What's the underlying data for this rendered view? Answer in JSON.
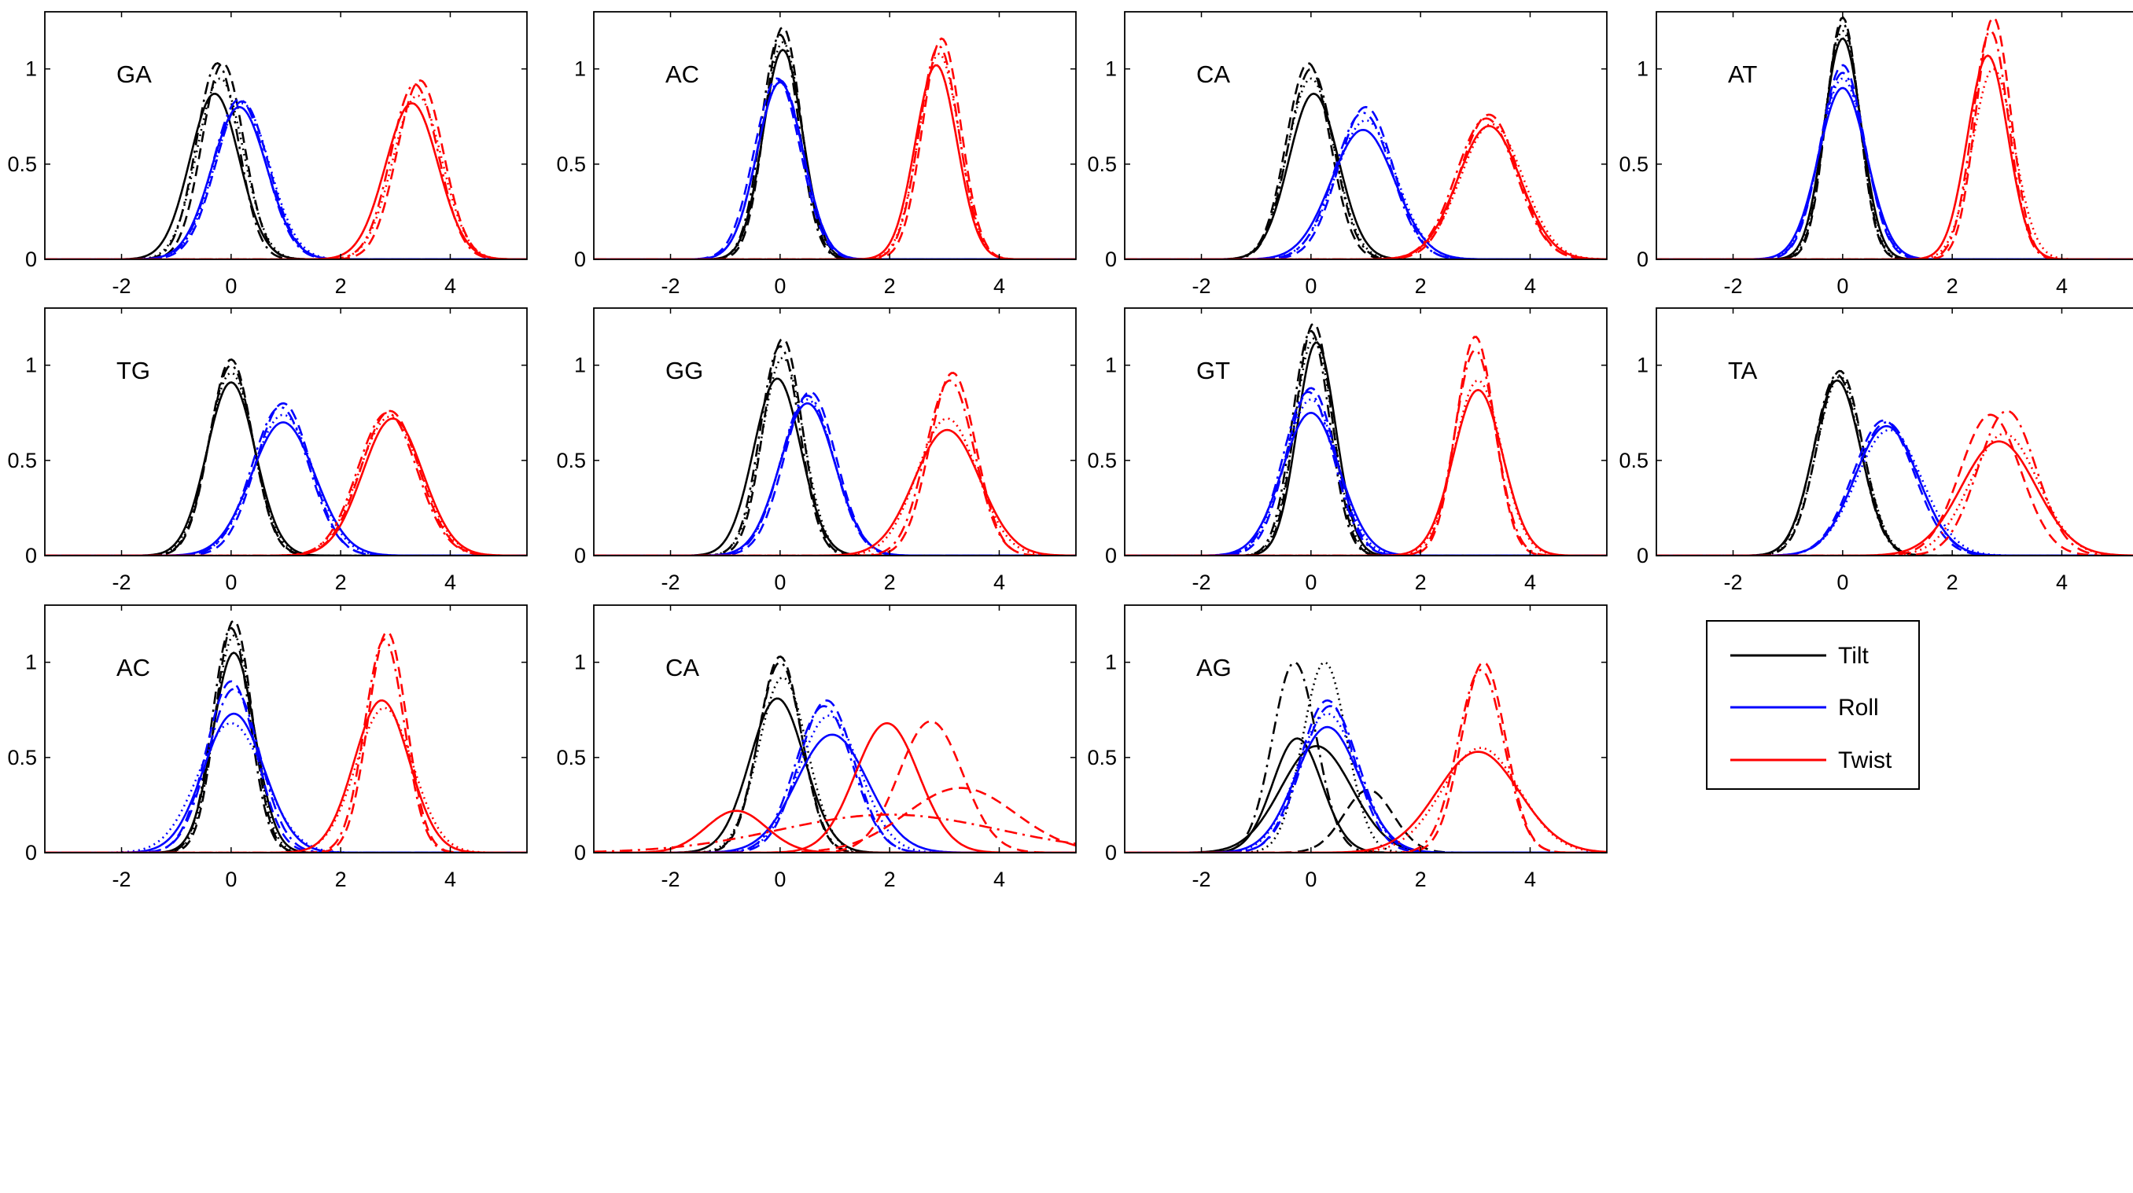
{
  "chart_data": {
    "type": "line",
    "grid": false,
    "xlim": [
      -3.4,
      5.4
    ],
    "ylim": [
      0,
      1.3
    ],
    "xticks": [
      -2,
      0,
      2,
      4
    ],
    "yticks": [
      0,
      0.5,
      1
    ],
    "ytick_labels": [
      "0",
      "0.5",
      "1"
    ],
    "series_colors": {
      "Tilt": "#000000",
      "Roll": "#0000ff",
      "Twist": "#ff0000"
    },
    "curve_styles": [
      "solid",
      "dashed",
      "dashdot",
      "dotted"
    ],
    "legend": {
      "placement": "bottom-right",
      "entries": [
        {
          "name": "Tilt",
          "color": "#000000"
        },
        {
          "name": "Roll",
          "color": "#0000ff"
        },
        {
          "name": "Twist",
          "color": "#ff0000"
        }
      ]
    },
    "panels": [
      {
        "label": "GA",
        "series": [
          {
            "name": "Tilt",
            "curves": [
              [
                -0.3,
                0.45,
                0.87
              ],
              [
                -0.15,
                0.38,
                1.03
              ],
              [
                -0.25,
                0.38,
                1.03
              ],
              [
                -0.2,
                0.42,
                0.95
              ]
            ]
          },
          {
            "name": "Roll",
            "curves": [
              [
                0.15,
                0.5,
                0.8
              ],
              [
                0.2,
                0.48,
                0.83
              ],
              [
                0.15,
                0.48,
                0.84
              ],
              [
                0.2,
                0.5,
                0.82
              ]
            ]
          },
          {
            "name": "Twist",
            "curves": [
              [
                3.3,
                0.48,
                0.82
              ],
              [
                3.45,
                0.42,
                0.94
              ],
              [
                3.35,
                0.43,
                0.92
              ],
              [
                3.4,
                0.45,
                0.86
              ]
            ]
          }
        ]
      },
      {
        "label": "AC",
        "series": [
          {
            "name": "Tilt",
            "curves": [
              [
                0.05,
                0.36,
                1.1
              ],
              [
                0.05,
                0.33,
                1.22
              ],
              [
                0.0,
                0.34,
                1.18
              ],
              [
                0.05,
                0.35,
                1.14
              ]
            ]
          },
          {
            "name": "Roll",
            "curves": [
              [
                0.0,
                0.42,
                0.93
              ],
              [
                -0.05,
                0.42,
                0.95
              ],
              [
                0.0,
                0.42,
                0.94
              ],
              [
                0.0,
                0.42,
                0.93
              ]
            ]
          },
          {
            "name": "Twist",
            "curves": [
              [
                2.85,
                0.38,
                1.02
              ],
              [
                2.95,
                0.35,
                1.16
              ],
              [
                2.9,
                0.36,
                1.12
              ],
              [
                2.9,
                0.37,
                1.08
              ]
            ]
          }
        ]
      },
      {
        "label": "CA",
        "series": [
          {
            "name": "Tilt",
            "curves": [
              [
                0.05,
                0.45,
                0.87
              ],
              [
                -0.05,
                0.4,
                1.03
              ],
              [
                0.0,
                0.41,
                1.0
              ],
              [
                0.0,
                0.43,
                0.95
              ]
            ]
          },
          {
            "name": "Roll",
            "curves": [
              [
                0.95,
                0.58,
                0.68
              ],
              [
                1.0,
                0.5,
                0.8
              ],
              [
                0.95,
                0.52,
                0.77
              ],
              [
                1.0,
                0.55,
                0.73
              ]
            ]
          },
          {
            "name": "Twist",
            "curves": [
              [
                3.25,
                0.57,
                0.7
              ],
              [
                3.25,
                0.53,
                0.76
              ],
              [
                3.2,
                0.55,
                0.74
              ],
              [
                3.3,
                0.57,
                0.71
              ]
            ]
          }
        ]
      },
      {
        "label": "AT",
        "series": [
          {
            "name": "Tilt",
            "curves": [
              [
                0.0,
                0.34,
                1.16
              ],
              [
                0.0,
                0.3,
                1.27
              ],
              [
                0.0,
                0.31,
                1.24
              ],
              [
                0.0,
                0.33,
                1.2
              ]
            ]
          },
          {
            "name": "Roll",
            "curves": [
              [
                0.0,
                0.44,
                0.9
              ],
              [
                0.0,
                0.4,
                1.02
              ],
              [
                0.0,
                0.41,
                0.98
              ],
              [
                0.0,
                0.42,
                0.95
              ]
            ]
          },
          {
            "name": "Twist",
            "curves": [
              [
                2.65,
                0.37,
                1.07
              ],
              [
                2.75,
                0.32,
                1.27
              ],
              [
                2.7,
                0.33,
                1.2
              ],
              [
                2.75,
                0.38,
                1.0
              ]
            ]
          }
        ]
      },
      {
        "label": "TG",
        "series": [
          {
            "name": "Tilt",
            "curves": [
              [
                0.0,
                0.44,
                0.91
              ],
              [
                0.0,
                0.39,
                1.03
              ],
              [
                0.0,
                0.4,
                1.0
              ],
              [
                0.0,
                0.42,
                0.96
              ]
            ]
          },
          {
            "name": "Roll",
            "curves": [
              [
                0.95,
                0.58,
                0.7
              ],
              [
                0.95,
                0.5,
                0.8
              ],
              [
                0.9,
                0.52,
                0.78
              ],
              [
                0.95,
                0.55,
                0.74
              ]
            ]
          },
          {
            "name": "Twist",
            "curves": [
              [
                2.95,
                0.55,
                0.72
              ],
              [
                2.9,
                0.53,
                0.76
              ],
              [
                2.85,
                0.54,
                0.75
              ],
              [
                2.9,
                0.56,
                0.73
              ]
            ]
          }
        ]
      },
      {
        "label": "GG",
        "series": [
          {
            "name": "Tilt",
            "curves": [
              [
                -0.05,
                0.43,
                0.93
              ],
              [
                0.05,
                0.35,
                1.14
              ],
              [
                0.0,
                0.36,
                1.1
              ],
              [
                0.05,
                0.38,
                1.04
              ]
            ]
          },
          {
            "name": "Roll",
            "curves": [
              [
                0.5,
                0.5,
                0.8
              ],
              [
                0.55,
                0.47,
                0.86
              ],
              [
                0.5,
                0.48,
                0.84
              ],
              [
                0.5,
                0.49,
                0.82
              ]
            ]
          },
          {
            "name": "Twist",
            "curves": [
              [
                3.05,
                0.6,
                0.66
              ],
              [
                3.15,
                0.42,
                0.96
              ],
              [
                3.1,
                0.44,
                0.92
              ],
              [
                3.05,
                0.55,
                0.72
              ]
            ]
          }
        ]
      },
      {
        "label": "GT",
        "series": [
          {
            "name": "Tilt",
            "curves": [
              [
                0.1,
                0.35,
                1.12
              ],
              [
                0.05,
                0.33,
                1.22
              ],
              [
                0.0,
                0.34,
                1.18
              ],
              [
                0.05,
                0.35,
                1.14
              ]
            ]
          },
          {
            "name": "Roll",
            "curves": [
              [
                0.0,
                0.52,
                0.75
              ],
              [
                0.0,
                0.45,
                0.88
              ],
              [
                -0.05,
                0.46,
                0.86
              ],
              [
                0.0,
                0.48,
                0.82
              ]
            ]
          },
          {
            "name": "Twist",
            "curves": [
              [
                3.05,
                0.45,
                0.87
              ],
              [
                3.0,
                0.35,
                1.15
              ],
              [
                3.0,
                0.37,
                1.08
              ],
              [
                3.05,
                0.43,
                0.92
              ]
            ]
          }
        ]
      },
      {
        "label": "TA",
        "series": [
          {
            "name": "Tilt",
            "curves": [
              [
                -0.1,
                0.43,
                0.92
              ],
              [
                -0.05,
                0.41,
                0.97
              ],
              [
                -0.1,
                0.42,
                0.95
              ],
              [
                -0.05,
                0.42,
                0.94
              ]
            ]
          },
          {
            "name": "Roll",
            "curves": [
              [
                0.8,
                0.58,
                0.68
              ],
              [
                0.75,
                0.56,
                0.71
              ],
              [
                0.8,
                0.57,
                0.7
              ],
              [
                0.85,
                0.6,
                0.66
              ]
            ]
          },
          {
            "name": "Twist",
            "curves": [
              [
                2.85,
                0.68,
                0.6
              ],
              [
                2.7,
                0.55,
                0.74
              ],
              [
                3.0,
                0.53,
                0.76
              ],
              [
                2.95,
                0.62,
                0.64
              ]
            ]
          }
        ]
      },
      {
        "label": "AC",
        "series": [
          {
            "name": "Tilt",
            "curves": [
              [
                0.05,
                0.38,
                1.05
              ],
              [
                0.05,
                0.33,
                1.22
              ],
              [
                0.0,
                0.34,
                1.18
              ],
              [
                0.05,
                0.35,
                1.14
              ]
            ]
          },
          {
            "name": "Roll",
            "curves": [
              [
                0.05,
                0.55,
                0.73
              ],
              [
                0.0,
                0.45,
                0.9
              ],
              [
                0.05,
                0.47,
                0.86
              ],
              [
                0.0,
                0.6,
                0.68
              ]
            ]
          },
          {
            "name": "Twist",
            "curves": [
              [
                2.75,
                0.5,
                0.8
              ],
              [
                2.85,
                0.35,
                1.16
              ],
              [
                2.8,
                0.36,
                1.12
              ],
              [
                2.8,
                0.52,
                0.76
              ]
            ]
          }
        ]
      },
      {
        "label": "CA",
        "series": [
          {
            "name": "Tilt",
            "curves": [
              [
                -0.05,
                0.5,
                0.81
              ],
              [
                0.0,
                0.39,
                1.03
              ],
              [
                0.0,
                0.4,
                1.0
              ],
              [
                0.05,
                0.44,
                0.92
              ]
            ]
          },
          {
            "name": "Roll",
            "curves": [
              [
                0.95,
                0.65,
                0.62
              ],
              [
                0.85,
                0.5,
                0.8
              ],
              [
                0.8,
                0.52,
                0.77
              ],
              [
                0.9,
                0.56,
                0.72
              ]
            ]
          },
          {
            "name": "Twist",
            "curves": [
              [
                -0.8,
                0.55,
                0.22
              ],
              [
                3.3,
                1.0,
                0.34
              ]
            ]
          },
          {
            "name": "Twist",
            "curves": [
              [
                1.95,
                0.58,
                0.68
              ],
              [
                2.75,
                0.58,
                0.69
              ],
              [
                2.0,
                2.0,
                0.2
              ]
            ]
          }
        ]
      },
      {
        "label": "AG",
        "series": [
          {
            "name": "Tilt",
            "curves": [
              [
                -0.25,
                0.45,
                0.6
              ],
              [
                1.05,
                0.45,
                0.33
              ],
              [
                -0.3,
                0.4,
                1.0
              ],
              [
                0.25,
                0.4,
                1.0
              ],
              [
                0.1,
                0.65,
                0.56
              ]
            ]
          },
          {
            "name": "Roll",
            "curves": [
              [
                0.3,
                0.58,
                0.66
              ],
              [
                0.3,
                0.5,
                0.8
              ],
              [
                0.35,
                0.52,
                0.77
              ],
              [
                0.3,
                0.55,
                0.73
              ]
            ]
          },
          {
            "name": "Twist",
            "curves": [
              [
                3.05,
                0.75,
                0.53
              ],
              [
                3.15,
                0.4,
                1.0
              ],
              [
                3.1,
                0.42,
                0.96
              ],
              [
                3.1,
                0.7,
                0.55
              ]
            ]
          }
        ]
      }
    ]
  }
}
